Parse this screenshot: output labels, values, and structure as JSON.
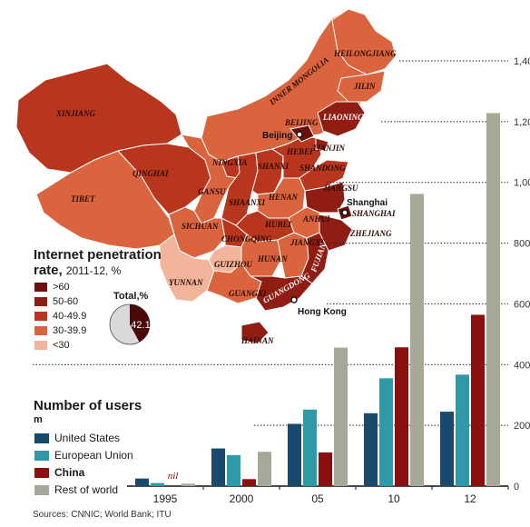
{
  "penetration": {
    "title": "Internet penetration",
    "subtitle_bold": "rate,",
    "subtitle": "2011-12, %",
    "legend": [
      {
        "label": ">60",
        "color": "#6b0f0a"
      },
      {
        "label": "50-60",
        "color": "#8f1d13"
      },
      {
        "label": "40-49.9",
        "color": "#b8351e"
      },
      {
        "label": "30-39.9",
        "color": "#d9643d"
      },
      {
        "label": "<30",
        "color": "#f2b49a"
      }
    ],
    "total_label": "Total,%",
    "total_value": "42.1",
    "total_fraction": 0.421
  },
  "map_labels": {
    "provinces": [
      "XINJIANG",
      "TIBET",
      "QINGHAI",
      "INNER MONGOLIA",
      "HEILONGJIANG",
      "JILIN",
      "LIAONING",
      "BEIJING",
      "TIANJIN",
      "HEBEI",
      "SHANXI",
      "NINGXIA",
      "GANSU",
      "SHAANXI",
      "HENAN",
      "SHANDONG",
      "JIANGSU",
      "ANHUI",
      "SHANGHAI",
      "ZHEJIANG",
      "SICHUAN",
      "CHONGQING",
      "HUBEI",
      "JIANGXI",
      "HUNAN",
      "FUJIAN",
      "GUIZHOU",
      "YUNNAN",
      "GUANGXI",
      "GUANGDONG",
      "HAINAN"
    ],
    "cities": [
      "Beijing",
      "Shanghai",
      "Hong Kong"
    ]
  },
  "users_legend": {
    "title": "Number of users",
    "unit": "m"
  },
  "source": "Sources: CNNIC; World Bank; ITU",
  "chart_data": {
    "type": "bar",
    "title": "Number of users",
    "ylabel": "m",
    "categories": [
      "1995",
      "2000",
      "05",
      "10",
      "12"
    ],
    "ylim": [
      0,
      1400
    ],
    "yticks": [
      "0",
      "200",
      "400",
      "600",
      "800",
      "1,000",
      "1,200",
      "1,400"
    ],
    "annotations": [
      {
        "category": "1995",
        "series": "China",
        "text": "nil"
      }
    ],
    "series": [
      {
        "name": "United States",
        "color": "#1a4a6b",
        "values": [
          25,
          124,
          205,
          240,
          245
        ]
      },
      {
        "name": "European Union",
        "color": "#2e9aa8",
        "values": [
          10,
          102,
          252,
          355,
          367
        ]
      },
      {
        "name": "China",
        "color": "#8a0f0f",
        "values": [
          0,
          23,
          111,
          457,
          564
        ]
      },
      {
        "name": "Rest of world",
        "color": "#a8a898",
        "values": [
          8,
          113,
          456,
          962,
          1228
        ]
      }
    ]
  }
}
